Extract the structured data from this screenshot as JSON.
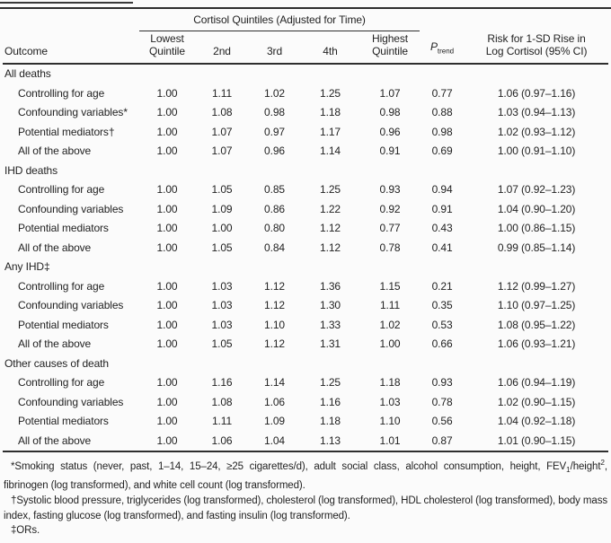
{
  "table": {
    "spanner": "Cortisol Quintiles (Adjusted for Time)",
    "headers": {
      "outcome": "Outcome",
      "q1": [
        "Lowest",
        "Quintile"
      ],
      "q2": "2nd",
      "q3": "3rd",
      "q4": "4th",
      "q5": [
        "Highest",
        "Quintile"
      ],
      "p_main": "P",
      "p_sub": "trend",
      "risk": [
        "Risk for 1-SD Rise in",
        "Log Cortisol (95% CI)"
      ]
    },
    "sections": [
      {
        "title": "All deaths",
        "rows": [
          {
            "label": "Controlling for age",
            "values": [
              "1.00",
              "1.11",
              "1.02",
              "1.25",
              "1.07",
              "0.77",
              "1.06 (0.97–1.16)"
            ]
          },
          {
            "label": "Confounding variables*",
            "values": [
              "1.00",
              "1.08",
              "0.98",
              "1.18",
              "0.98",
              "0.88",
              "1.03 (0.94–1.13)"
            ]
          },
          {
            "label": "Potential mediators†",
            "values": [
              "1.00",
              "1.07",
              "0.97",
              "1.17",
              "0.96",
              "0.98",
              "1.02 (0.93–1.12)"
            ]
          },
          {
            "label": "All of the above",
            "values": [
              "1.00",
              "1.07",
              "0.96",
              "1.14",
              "0.91",
              "0.69",
              "1.00 (0.91–1.10)"
            ]
          }
        ]
      },
      {
        "title": "IHD deaths",
        "rows": [
          {
            "label": "Controlling for age",
            "values": [
              "1.00",
              "1.05",
              "0.85",
              "1.25",
              "0.93",
              "0.94",
              "1.07 (0.92–1.23)"
            ]
          },
          {
            "label": "Confounding variables",
            "values": [
              "1.00",
              "1.09",
              "0.86",
              "1.22",
              "0.92",
              "0.91",
              "1.04 (0.90–1.20)"
            ]
          },
          {
            "label": "Potential mediators",
            "values": [
              "1.00",
              "1.00",
              "0.80",
              "1.12",
              "0.77",
              "0.43",
              "1.00 (0.86–1.15)"
            ]
          },
          {
            "label": "All of the above",
            "values": [
              "1.00",
              "1.05",
              "0.84",
              "1.12",
              "0.78",
              "0.41",
              "0.99 (0.85–1.14)"
            ]
          }
        ]
      },
      {
        "title": "Any IHD‡",
        "rows": [
          {
            "label": "Controlling for age",
            "values": [
              "1.00",
              "1.03",
              "1.12",
              "1.36",
              "1.15",
              "0.21",
              "1.12 (0.99–1.27)"
            ]
          },
          {
            "label": "Confounding variables",
            "values": [
              "1.00",
              "1.03",
              "1.12",
              "1.30",
              "1.11",
              "0.35",
              "1.10 (0.97–1.25)"
            ]
          },
          {
            "label": "Potential mediators",
            "values": [
              "1.00",
              "1.03",
              "1.10",
              "1.33",
              "1.02",
              "0.53",
              "1.08 (0.95–1.22)"
            ]
          },
          {
            "label": "All of the above",
            "values": [
              "1.00",
              "1.05",
              "1.12",
              "1.31",
              "1.00",
              "0.66",
              "1.06 (0.93–1.21)"
            ]
          }
        ]
      },
      {
        "title": "Other causes of death",
        "rows": [
          {
            "label": "Controlling for age",
            "values": [
              "1.00",
              "1.16",
              "1.14",
              "1.25",
              "1.18",
              "0.93",
              "1.06 (0.94–1.19)"
            ]
          },
          {
            "label": "Confounding variables",
            "values": [
              "1.00",
              "1.08",
              "1.06",
              "1.16",
              "1.03",
              "0.78",
              "1.02 (0.90–1.15)"
            ]
          },
          {
            "label": "Potential mediators",
            "values": [
              "1.00",
              "1.11",
              "1.09",
              "1.18",
              "1.10",
              "0.56",
              "1.04 (0.92–1.18)"
            ]
          },
          {
            "label": "All of the above",
            "values": [
              "1.00",
              "1.06",
              "1.04",
              "1.13",
              "1.01",
              "0.87",
              "1.01 (0.90–1.15)"
            ]
          }
        ]
      }
    ]
  },
  "footnotes": {
    "star": {
      "pre": "*Smoking status (never, past, 1–14, 15–24, ≥25 cigarettes/d), adult social class, alcohol consumption, height, FEV",
      "sub": "1",
      "mid": "/height",
      "sup": "2",
      "post": ", fibrinogen (log transformed), and white cell count (log transformed)."
    },
    "dagger": "†Systolic blood pressure, triglycerides (log transformed), cholesterol (log transformed), HDL cholesterol (log transformed), body mass index, fasting glucose (log transformed), and fasting insulin (log transformed).",
    "double_dagger": "‡ORs."
  },
  "colors": {
    "background": "#fbfbfb",
    "text": "#222222",
    "rule": "#2e2e2e"
  }
}
